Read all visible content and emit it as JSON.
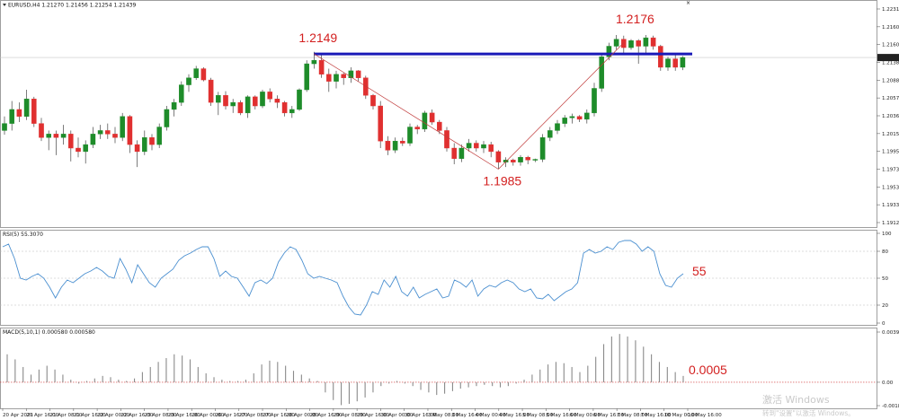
{
  "window": {
    "symbol_info": "EURUSD,H4  1.21270 1.21456 1.21254 1.21439",
    "corner_mark": "×"
  },
  "chart_data": [
    {
      "type": "candlestick",
      "title": "EURUSD,H4  1.21270 1.21456 1.21254 1.21439",
      "ylim": [
        1.1909,
        1.2213
      ],
      "y_ticks": [
        "1.22310",
        "1.21605",
        "1.21600",
        "1.21385",
        "1.20880",
        "1.20570",
        "1.20360",
        "1.20155",
        "1.19950",
        "1.19735",
        "1.19530",
        "1.19330",
        "1.19125"
      ],
      "current_price": "1.21439",
      "resistance_level": 1.2149,
      "annotations": [
        {
          "text": "1.2149",
          "value": 1.2149,
          "index": 42
        },
        {
          "text": "1.2176",
          "value": 1.2176,
          "index": 85
        },
        {
          "text": "1.1985",
          "value": 1.1985,
          "index": 67
        }
      ],
      "trend_lines": [
        {
          "from_index": 42,
          "from_value": 1.2149,
          "to_index": 67,
          "to_value": 1.1985
        },
        {
          "from_index": 67,
          "to_index": 84,
          "from_value": 1.1985,
          "to_value": 1.2165
        }
      ],
      "up_color": "#1e8c2a",
      "down_color": "#e03030",
      "candles": [
        [
          1.204,
          1.206,
          1.2034,
          1.205
        ],
        [
          1.205,
          1.2082,
          1.204,
          1.207
        ],
        [
          1.207,
          1.208,
          1.2052,
          1.206
        ],
        [
          1.206,
          1.2098,
          1.2055,
          1.2085
        ],
        [
          1.2085,
          1.2088,
          1.2045,
          1.205
        ],
        [
          1.205,
          1.2058,
          1.2025,
          1.203
        ],
        [
          1.203,
          1.204,
          1.2012,
          1.2035
        ],
        [
          1.2035,
          1.204,
          1.2005,
          1.203
        ],
        [
          1.203,
          1.2048,
          1.202,
          1.2035
        ],
        [
          1.2035,
          1.204,
          1.1996,
          1.2015
        ],
        [
          1.2015,
          1.203,
          1.2002,
          1.201
        ],
        [
          1.201,
          1.2026,
          1.1993,
          1.202
        ],
        [
          1.202,
          1.2045,
          1.2015,
          1.2035
        ],
        [
          1.2035,
          1.2048,
          1.2028,
          1.204
        ],
        [
          1.204,
          1.205,
          1.2028,
          1.2035
        ],
        [
          1.2035,
          1.2045,
          1.2022,
          1.203
        ],
        [
          1.203,
          1.2065,
          1.2025,
          1.206
        ],
        [
          1.206,
          1.2062,
          1.2008,
          1.202
        ],
        [
          1.202,
          1.2026,
          1.1988,
          1.201
        ],
        [
          1.201,
          1.204,
          1.2005,
          1.203
        ],
        [
          1.203,
          1.2035,
          1.2012,
          1.202
        ],
        [
          1.202,
          1.205,
          1.2015,
          1.2045
        ],
        [
          1.2045,
          1.2075,
          1.204,
          1.207
        ],
        [
          1.207,
          1.2085,
          1.206,
          1.208
        ],
        [
          1.208,
          1.211,
          1.2075,
          1.2105
        ],
        [
          1.2105,
          1.212,
          1.2095,
          1.2115
        ],
        [
          1.2115,
          1.2132,
          1.2112,
          1.2128
        ],
        [
          1.2128,
          1.213,
          1.211,
          1.2112
        ],
        [
          1.2112,
          1.2115,
          1.2075,
          1.208
        ],
        [
          1.208,
          1.2095,
          1.2062,
          1.209
        ],
        [
          1.209,
          1.2096,
          1.207,
          1.2075
        ],
        [
          1.2075,
          1.2085,
          1.2065,
          1.208
        ],
        [
          1.208,
          1.2083,
          1.2062,
          1.2065
        ],
        [
          1.2065,
          1.209,
          1.2058,
          1.2088
        ],
        [
          1.2088,
          1.209,
          1.207,
          1.2075
        ],
        [
          1.2075,
          1.2098,
          1.2072,
          1.2095
        ],
        [
          1.2095,
          1.21,
          1.208,
          1.2085
        ],
        [
          1.2085,
          1.209,
          1.2072,
          1.208
        ],
        [
          1.208,
          1.2082,
          1.206,
          1.2065
        ],
        [
          1.2065,
          1.2075,
          1.2058,
          1.207
        ],
        [
          1.207,
          1.21,
          1.2068,
          1.2098
        ],
        [
          1.2098,
          1.214,
          1.2095,
          1.2135
        ],
        [
          1.2135,
          1.2152,
          1.2128,
          1.214
        ],
        [
          1.214,
          1.2149,
          1.2115,
          1.212
        ],
        [
          1.212,
          1.2128,
          1.2095,
          1.211
        ],
        [
          1.211,
          1.2125,
          1.21,
          1.212
        ],
        [
          1.212,
          1.2122,
          1.2105,
          1.2115
        ],
        [
          1.2115,
          1.213,
          1.2108,
          1.2125
        ],
        [
          1.2125,
          1.2126,
          1.211,
          1.2115
        ],
        [
          1.2115,
          1.2118,
          1.2085,
          1.209
        ],
        [
          1.209,
          1.2092,
          1.207,
          1.2075
        ],
        [
          1.2075,
          1.2082,
          1.2015,
          1.2025
        ],
        [
          1.2025,
          1.2032,
          1.2005,
          1.2012
        ],
        [
          1.2012,
          1.203,
          1.2008,
          1.2025
        ],
        [
          1.2025,
          1.203,
          1.2018,
          1.2022
        ],
        [
          1.2022,
          1.205,
          1.2018,
          1.2045
        ],
        [
          1.2045,
          1.2048,
          1.2035,
          1.2042
        ],
        [
          1.2042,
          1.2068,
          1.2038,
          1.2065
        ],
        [
          1.2065,
          1.207,
          1.2048,
          1.2052
        ],
        [
          1.2052,
          1.2055,
          1.2035,
          1.204
        ],
        [
          1.204,
          1.2045,
          1.201,
          1.2015
        ],
        [
          1.2015,
          1.2022,
          1.1992,
          1.2
        ],
        [
          1.2,
          1.202,
          1.1995,
          1.2015
        ],
        [
          1.2015,
          1.2028,
          1.201,
          1.2022
        ],
        [
          1.2022,
          1.2026,
          1.201,
          1.2015
        ],
        [
          1.2015,
          1.2025,
          1.2008,
          1.202
        ],
        [
          1.202,
          1.2024,
          1.2002,
          1.201
        ],
        [
          1.201,
          1.2012,
          1.1985,
          1.1995
        ],
        [
          1.1995,
          1.2002,
          1.1988,
          1.1998
        ],
        [
          1.1998,
          1.2,
          1.199,
          1.1995
        ],
        [
          1.1995,
          1.2005,
          1.199,
          1.2002
        ],
        [
          1.2002,
          1.2004,
          1.1992,
          1.1998
        ],
        [
          1.1998,
          1.2,
          1.1995,
          1.1999
        ],
        [
          1.1999,
          1.2035,
          1.1995,
          1.203
        ],
        [
          1.203,
          1.2045,
          1.2025,
          1.204
        ],
        [
          1.204,
          1.2055,
          1.2035,
          1.205
        ],
        [
          1.205,
          1.2062,
          1.2045,
          1.2058
        ],
        [
          1.2058,
          1.2064,
          1.205,
          1.206
        ],
        [
          1.206,
          1.2062,
          1.2052,
          1.2056
        ],
        [
          1.2056,
          1.207,
          1.205,
          1.2065
        ],
        [
          1.2065,
          1.2108,
          1.206,
          1.21
        ],
        [
          1.21,
          1.215,
          1.2095,
          1.2145
        ],
        [
          1.2145,
          1.2165,
          1.214,
          1.216
        ],
        [
          1.216,
          1.2176,
          1.2155,
          1.217
        ],
        [
          1.217,
          1.2175,
          1.215,
          1.2158
        ],
        [
          1.2158,
          1.217,
          1.2155,
          1.2168
        ],
        [
          1.2168,
          1.217,
          1.2135,
          1.216
        ],
        [
          1.216,
          1.2176,
          1.215,
          1.2172
        ],
        [
          1.2172,
          1.2175,
          1.2155,
          1.216
        ],
        [
          1.216,
          1.2162,
          1.2125,
          1.213
        ],
        [
          1.213,
          1.2145,
          1.2125,
          1.2142
        ],
        [
          1.2142,
          1.215,
          1.2125,
          1.213
        ],
        [
          1.213,
          1.2146,
          1.2126,
          1.2144
        ]
      ]
    },
    {
      "type": "line",
      "title": "RSI(5) 55.3070",
      "ylim": [
        0,
        100
      ],
      "levels": [
        80,
        50,
        20
      ],
      "y_ticks": [
        "100",
        "80",
        "50",
        "20",
        "0"
      ],
      "annotation": "55",
      "line_color": "#4a8fd0",
      "values": [
        85,
        88,
        72,
        50,
        48,
        52,
        55,
        50,
        40,
        28,
        40,
        48,
        45,
        50,
        55,
        58,
        62,
        58,
        52,
        50,
        72,
        60,
        45,
        65,
        55,
        45,
        40,
        50,
        55,
        60,
        70,
        75,
        78,
        82,
        85,
        85,
        72,
        52,
        58,
        52,
        50,
        40,
        30,
        45,
        48,
        44,
        50,
        68,
        78,
        85,
        82,
        70,
        55,
        50,
        52,
        50,
        48,
        45,
        30,
        18,
        10,
        9,
        20,
        35,
        32,
        48,
        40,
        52,
        35,
        30,
        40,
        28,
        32,
        35,
        38,
        28,
        30,
        48,
        45,
        40,
        48,
        30,
        38,
        42,
        40,
        45,
        48,
        45,
        38,
        35,
        38,
        28,
        27,
        32,
        25,
        30,
        35,
        38,
        45,
        78,
        82,
        78,
        80,
        85,
        82,
        90,
        92,
        92,
        88,
        80,
        85,
        80,
        55,
        42,
        40,
        50,
        55
      ]
    },
    {
      "type": "bar",
      "title": "MACD(5,10,1) 0.000580 0.000580",
      "ylim": [
        -0.00184,
        0.00395
      ],
      "y_ticks": [
        "0.00395",
        "0.00",
        "-0.00184"
      ],
      "annotation": "0.0005",
      "bar_color": "#8a8a8a",
      "values": [
        0.0022,
        0.0018,
        0.0012,
        0.0006,
        0.001,
        0.0013,
        0.001,
        0.0006,
        0.0002,
        -0.0001,
        0.0001,
        0.0003,
        0.0005,
        0.0004,
        0.0002,
        0.0001,
        0.0003,
        0.0008,
        0.0012,
        0.0016,
        0.0019,
        0.0022,
        0.0021,
        0.0018,
        0.0012,
        0.0007,
        0.0004,
        0.0002,
        0.0001,
        0.0001,
        0.0002,
        0.0007,
        0.0014,
        0.0017,
        0.0016,
        0.0013,
        0.0009,
        0.0006,
        0.0003,
        0.0001,
        -0.0008,
        -0.0014,
        -0.0018,
        -0.0017,
        -0.0015,
        -0.0012,
        -0.0008,
        -0.0003,
        -0.0001,
        0.0001,
        -0.0001,
        -0.0003,
        -0.0006,
        -0.0008,
        -0.001,
        -0.0009,
        -0.0007,
        -0.0005,
        -0.0004,
        -0.0003,
        -0.0002,
        -0.0003,
        -0.0004,
        -0.0003,
        -0.0001,
        0.0002,
        0.0006,
        0.001,
        0.0014,
        0.0016,
        0.0015,
        0.0012,
        0.0008,
        0.0013,
        0.002,
        0.003,
        0.0036,
        0.0038,
        0.0036,
        0.0033,
        0.0028,
        0.0022,
        0.0016,
        0.0012,
        0.0008,
        0.0005
      ]
    }
  ],
  "time_axis": [
    "20 Apr 2021",
    "20 Apr 16:00",
    "21 Apr 08:00",
    "21 Apr 16:00",
    "22 Apr 00:00",
    "22 Apr 16:00",
    "23 Apr 08:00",
    "23 Apr 16:00",
    "26 Apr 00:00",
    "26 Apr 16:00",
    "27 Apr 08:00",
    "27 Apr 16:00",
    "28 Apr 00:00",
    "28 Apr 16:00",
    "29 Apr 08:00",
    "29 Apr 16:00",
    "30 Apr 00:00",
    "30 Apr 16:00",
    "3 May 08:00",
    "3 May 16:00",
    "4 May 00:00",
    "4 May 16:00",
    "5 May 08:00",
    "5 May 16:00",
    "6 May 00:00",
    "6 May 16:00",
    "7 May 08:00",
    "7 May 16:00",
    "10 May 00:00",
    "10 May 16:00"
  ],
  "watermark": {
    "line1": "激活 Windows",
    "line2": "转到\"设置\"以激活 Windows。"
  }
}
